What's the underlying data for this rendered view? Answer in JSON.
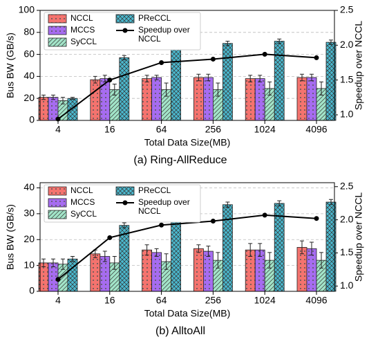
{
  "chart_data": [
    {
      "type": "bar",
      "caption": "(a) Ring-AllReduce",
      "x_label": "Total Data Size(MB)",
      "y_label": "Bus BW (GB/s)",
      "y2_label": "Speedup over NCCL",
      "categories": [
        "4",
        "16",
        "64",
        "256",
        "1024",
        "4096"
      ],
      "series": [
        {
          "name": "NCCL",
          "color": "#f4736e",
          "pattern": "dots",
          "values": [
            21,
            37,
            38,
            39,
            38,
            39
          ],
          "errors": [
            2,
            3,
            3,
            3,
            3,
            3
          ]
        },
        {
          "name": "MCCS",
          "color": "#a66cf0",
          "pattern": "dots",
          "values": [
            21,
            38,
            39,
            39,
            38,
            39
          ],
          "errors": [
            2,
            3,
            2,
            3,
            3,
            3
          ]
        },
        {
          "name": "SyCCL",
          "color": "#a2e4c8",
          "pattern": "diagonal",
          "values": [
            18,
            28,
            28,
            28,
            29,
            29
          ],
          "errors": [
            3,
            5,
            6,
            6,
            6,
            6
          ]
        },
        {
          "name": "PReCCL",
          "color": "#4bb9cf",
          "pattern": "crosshatch",
          "values": [
            20,
            57,
            67,
            70,
            72,
            71
          ],
          "errors": [
            1,
            2,
            2,
            2,
            2,
            2
          ]
        },
        {
          "name": "Speedup over NCCL",
          "type": "line",
          "axis": "y2",
          "color": "#000000",
          "values": [
            0.94,
            1.5,
            1.75,
            1.8,
            1.87,
            1.82
          ]
        }
      ],
      "ylim": [
        0,
        100
      ],
      "yticks": [
        0,
        20,
        40,
        60,
        80,
        100
      ],
      "y2lim": [
        0.92,
        2.5
      ],
      "y2ticks": [
        {
          "value": 1,
          "label": "1.0"
        },
        {
          "value": 1.5,
          "label": "1.5"
        },
        {
          "value": 2,
          "label": "2.0"
        },
        {
          "value": 2.5,
          "label": "2.5"
        }
      ],
      "grid": true,
      "legend": "upper left"
    },
    {
      "type": "bar",
      "caption": "(b) AlltoAll",
      "x_label": "Total Data Size(MB)",
      "y_label": "Bus BW (GB/s)",
      "y2_label": "Speedup over NCCL",
      "categories": [
        "4",
        "16",
        "64",
        "256",
        "1024",
        "4096"
      ],
      "series": [
        {
          "name": "NCCL",
          "color": "#f4736e",
          "pattern": "dots",
          "values": [
            11,
            14.5,
            16,
            16.5,
            16,
            17
          ],
          "errors": [
            1.5,
            1.5,
            2,
            1.5,
            2.5,
            2.5
          ]
        },
        {
          "name": "MCCS",
          "color": "#a66cf0",
          "pattern": "dots",
          "values": [
            11,
            13.5,
            15,
            15.5,
            16,
            16.5
          ],
          "errors": [
            1.5,
            2,
            1.5,
            2,
            2.5,
            2.5
          ]
        },
        {
          "name": "SyCCL",
          "color": "#a2e4c8",
          "pattern": "diagonal",
          "values": [
            10.5,
            11,
            11.5,
            12,
            12,
            12
          ],
          "errors": [
            2,
            2.5,
            3,
            3,
            3,
            3
          ]
        },
        {
          "name": "PReCCL",
          "color": "#4bb9cf",
          "pattern": "crosshatch",
          "values": [
            12.5,
            25.5,
            31.5,
            33.5,
            34,
            34.5
          ],
          "errors": [
            1,
            1,
            1.5,
            1,
            1,
            1
          ]
        },
        {
          "name": "Speedup over NCCL",
          "type": "line",
          "axis": "y2",
          "color": "#000000",
          "values": [
            1.1,
            1.73,
            1.92,
            1.98,
            2.07,
            2.02
          ]
        }
      ],
      "ylim": [
        0,
        42
      ],
      "yticks": [
        0,
        10,
        20,
        30,
        40
      ],
      "y2lim": [
        0.92,
        2.56
      ],
      "y2ticks": [
        {
          "value": 1,
          "label": "1.0"
        },
        {
          "value": 1.5,
          "label": "1.5"
        },
        {
          "value": 2,
          "label": "2.0"
        },
        {
          "value": 2.5,
          "label": "2.5"
        }
      ],
      "grid": true,
      "legend": "upper left"
    }
  ]
}
